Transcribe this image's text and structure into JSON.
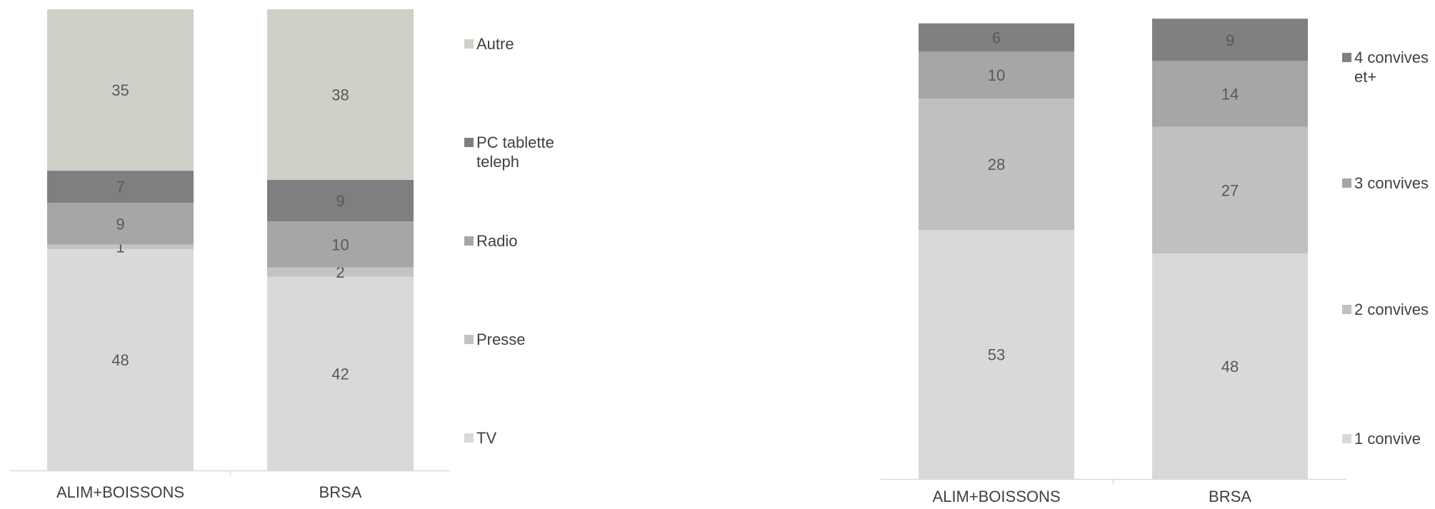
{
  "chart_data": [
    {
      "type": "bar",
      "stacked": true,
      "categories": [
        "ALIM+BOISSONS",
        "BRSA"
      ],
      "series": [
        {
          "name": "TV",
          "values": [
            48,
            42
          ],
          "color": "#d9d9d9"
        },
        {
          "name": "Presse",
          "values": [
            1,
            2
          ],
          "color": "#c3c3c3"
        },
        {
          "name": "Radio",
          "values": [
            9,
            10
          ],
          "color": "#a6a6a6"
        },
        {
          "name": "PC tablette teleph",
          "values": [
            7,
            9
          ],
          "color": "#7f7f7f"
        },
        {
          "name": "Autre",
          "values": [
            35,
            38
          ],
          "color": "#d0d0c8"
        }
      ],
      "ylim": [
        0,
        100
      ],
      "title": "",
      "xlabel": "",
      "ylabel": "",
      "grid": false,
      "legend": "right"
    },
    {
      "type": "bar",
      "stacked": true,
      "categories": [
        "ALIM+BOISSONS",
        "BRSA"
      ],
      "series": [
        {
          "name": "1 convive",
          "values": [
            53,
            48
          ],
          "color": "#d9d9d9"
        },
        {
          "name": "2 convives",
          "values": [
            28,
            27
          ],
          "color": "#c0c0c0"
        },
        {
          "name": "3 convives",
          "values": [
            10,
            14
          ],
          "color": "#a6a6a6"
        },
        {
          "name": "4 convives et+",
          "values": [
            6,
            9
          ],
          "color": "#808080"
        }
      ],
      "ylim": [
        0,
        100
      ],
      "title": "",
      "xlabel": "",
      "ylabel": "",
      "grid": false,
      "legend": "right"
    }
  ]
}
